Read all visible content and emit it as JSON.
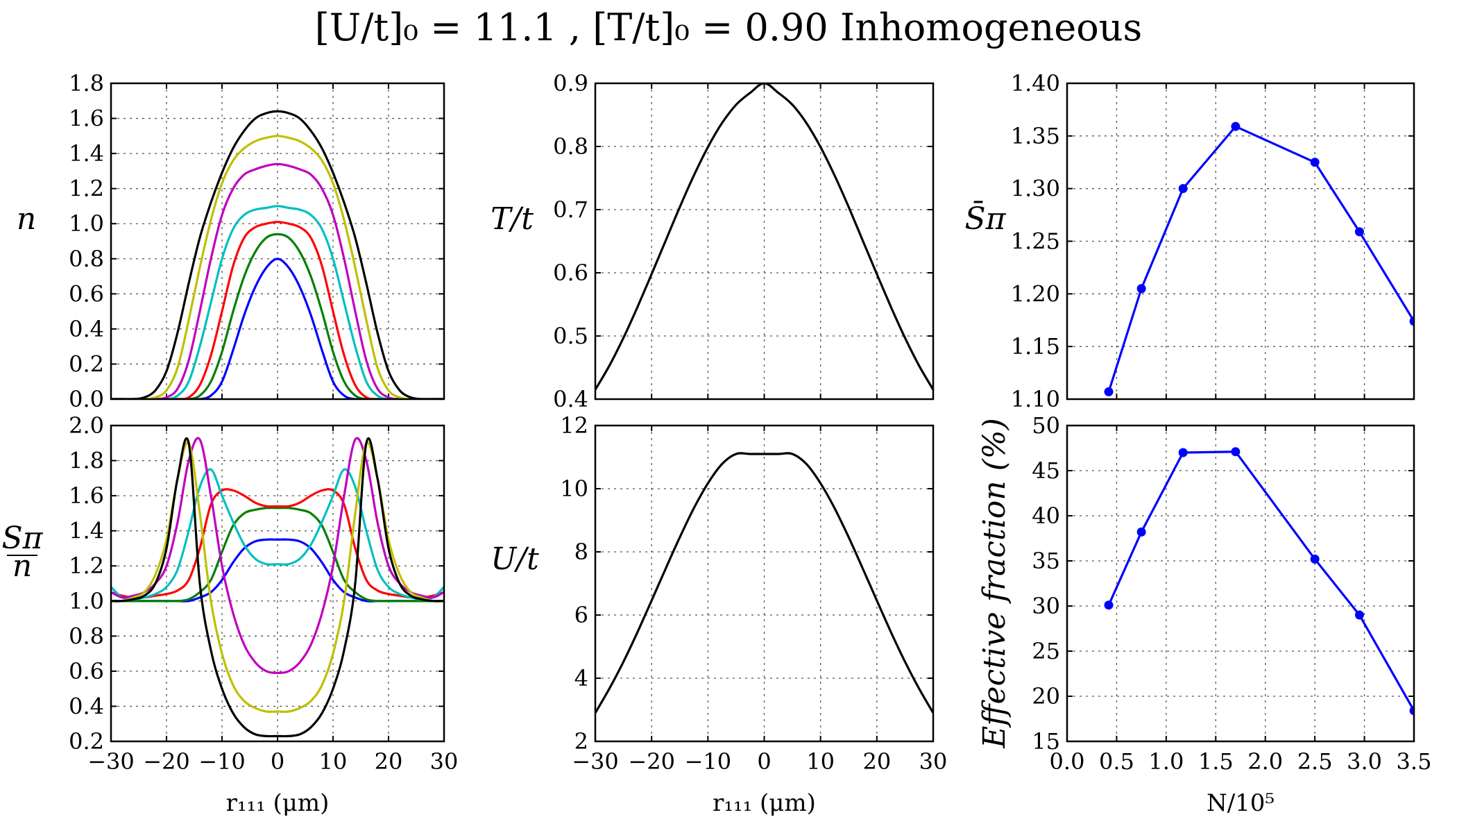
{
  "figure": {
    "title": "[U/t]₀ = 11.1 ,  [T/t]₀ = 0.90  Inhomogeneous"
  },
  "chart_data": [
    {
      "id": "density",
      "type": "line",
      "ylabel": "n",
      "xlabel": "",
      "xlim": [
        -30,
        30
      ],
      "ylim": [
        0.0,
        1.8
      ],
      "xticks": [
        -30,
        -20,
        -10,
        0,
        10,
        20,
        30
      ],
      "yticks": [
        0.0,
        0.2,
        0.4,
        0.6,
        0.8,
        1.0,
        1.2,
        1.4,
        1.6,
        1.8
      ],
      "show_xtick_labels": false,
      "grid": true,
      "x": [
        -30,
        -28,
        -26,
        -24,
        -22,
        -20,
        -18,
        -16,
        -14,
        -12,
        -10,
        -8,
        -6,
        -4,
        -2,
        0,
        2,
        4,
        6,
        8,
        10,
        12,
        14,
        16,
        18,
        20,
        22,
        24,
        26,
        28,
        30
      ],
      "series": [
        {
          "color": "#0000ff",
          "values": [
            0,
            0,
            0,
            0,
            0,
            0,
            0,
            0,
            0,
            0.02,
            0.1,
            0.28,
            0.48,
            0.64,
            0.75,
            0.8,
            0.75,
            0.64,
            0.48,
            0.28,
            0.1,
            0.02,
            0,
            0,
            0,
            0,
            0,
            0,
            0,
            0,
            0
          ]
        },
        {
          "color": "#007f00",
          "values": [
            0,
            0,
            0,
            0,
            0,
            0,
            0,
            0,
            0.02,
            0.1,
            0.27,
            0.5,
            0.7,
            0.84,
            0.92,
            0.94,
            0.92,
            0.84,
            0.7,
            0.5,
            0.27,
            0.1,
            0.02,
            0,
            0,
            0,
            0,
            0,
            0,
            0,
            0
          ]
        },
        {
          "color": "#ff0000",
          "values": [
            0,
            0,
            0,
            0,
            0,
            0,
            0,
            0.01,
            0.08,
            0.25,
            0.5,
            0.76,
            0.92,
            0.98,
            1.0,
            1.01,
            1.0,
            0.98,
            0.92,
            0.76,
            0.5,
            0.25,
            0.08,
            0.01,
            0,
            0,
            0,
            0,
            0,
            0,
            0
          ]
        },
        {
          "color": "#00bfbf",
          "values": [
            0,
            0,
            0,
            0,
            0,
            0,
            0.02,
            0.1,
            0.3,
            0.55,
            0.8,
            0.97,
            1.05,
            1.08,
            1.09,
            1.1,
            1.09,
            1.08,
            1.05,
            0.97,
            0.8,
            0.55,
            0.3,
            0.1,
            0.02,
            0,
            0,
            0,
            0,
            0,
            0
          ]
        },
        {
          "color": "#bf00bf",
          "values": [
            0,
            0,
            0,
            0,
            0,
            0.01,
            0.06,
            0.22,
            0.5,
            0.8,
            1.05,
            1.2,
            1.28,
            1.31,
            1.33,
            1.34,
            1.33,
            1.31,
            1.28,
            1.2,
            1.05,
            0.8,
            0.5,
            0.22,
            0.06,
            0.01,
            0,
            0,
            0,
            0,
            0
          ]
        },
        {
          "color": "#bfbf00",
          "values": [
            0,
            0,
            0,
            0,
            0.01,
            0.05,
            0.18,
            0.45,
            0.75,
            1.02,
            1.23,
            1.36,
            1.43,
            1.47,
            1.49,
            1.5,
            1.49,
            1.47,
            1.43,
            1.36,
            1.23,
            1.02,
            0.75,
            0.45,
            0.18,
            0.05,
            0.01,
            0,
            0,
            0,
            0
          ]
        },
        {
          "color": "#000000",
          "values": [
            0,
            0,
            0,
            0.01,
            0.05,
            0.16,
            0.38,
            0.66,
            0.92,
            1.12,
            1.29,
            1.43,
            1.53,
            1.6,
            1.63,
            1.64,
            1.63,
            1.6,
            1.53,
            1.43,
            1.29,
            1.12,
            0.92,
            0.66,
            0.38,
            0.16,
            0.05,
            0.01,
            0,
            0,
            0
          ]
        }
      ]
    },
    {
      "id": "structure_factor",
      "type": "line",
      "ylabel": "Sπ/n",
      "xlabel": "r₁₁₁ (μm)",
      "xlim": [
        -30,
        30
      ],
      "ylim": [
        0.2,
        2.0
      ],
      "xticks": [
        -30,
        -20,
        -10,
        0,
        10,
        20,
        30
      ],
      "yticks": [
        0.2,
        0.4,
        0.6,
        0.8,
        1.0,
        1.2,
        1.4,
        1.6,
        1.8,
        2.0
      ],
      "show_xtick_labels": true,
      "grid": true,
      "x": [
        -30,
        -28,
        -26,
        -24,
        -22,
        -20,
        -18,
        -16,
        -14,
        -12,
        -10,
        -8,
        -6,
        -4,
        -2,
        0,
        2,
        4,
        6,
        8,
        10,
        12,
        14,
        16,
        18,
        20,
        22,
        24,
        26,
        28,
        30
      ],
      "series": [
        {
          "color": "#0000ff",
          "values": [
            1.0,
            1.0,
            1.0,
            1.0,
            1.0,
            1.0,
            1.0,
            1.0,
            1.02,
            1.05,
            1.12,
            1.22,
            1.3,
            1.34,
            1.35,
            1.35,
            1.35,
            1.34,
            1.3,
            1.22,
            1.12,
            1.05,
            1.02,
            1.0,
            1.0,
            1.0,
            1.0,
            1.0,
            1.0,
            1.0,
            1.0
          ]
        },
        {
          "color": "#007f00",
          "values": [
            1.0,
            1.0,
            1.0,
            1.0,
            1.0,
            1.0,
            1.0,
            1.01,
            1.05,
            1.12,
            1.28,
            1.43,
            1.5,
            1.52,
            1.53,
            1.53,
            1.53,
            1.52,
            1.5,
            1.43,
            1.28,
            1.12,
            1.05,
            1.01,
            1.0,
            1.0,
            1.0,
            1.0,
            1.0,
            1.0,
            1.0
          ]
        },
        {
          "color": "#ff0000",
          "values": [
            1.05,
            1.03,
            1.02,
            1.02,
            1.03,
            1.04,
            1.06,
            1.12,
            1.3,
            1.55,
            1.63,
            1.63,
            1.6,
            1.56,
            1.54,
            1.54,
            1.54,
            1.56,
            1.6,
            1.63,
            1.63,
            1.55,
            1.3,
            1.12,
            1.06,
            1.04,
            1.03,
            1.02,
            1.02,
            1.03,
            1.05
          ]
        },
        {
          "color": "#00bfbf",
          "values": [
            1.08,
            1.02,
            1.01,
            1.02,
            1.04,
            1.08,
            1.18,
            1.4,
            1.65,
            1.75,
            1.6,
            1.45,
            1.32,
            1.24,
            1.21,
            1.21,
            1.21,
            1.24,
            1.32,
            1.45,
            1.6,
            1.75,
            1.65,
            1.4,
            1.18,
            1.08,
            1.04,
            1.02,
            1.01,
            1.02,
            1.08
          ]
        },
        {
          "color": "#bf00bf",
          "values": [
            1.05,
            1.02,
            1.03,
            1.05,
            1.1,
            1.2,
            1.45,
            1.8,
            1.92,
            1.6,
            1.2,
            0.93,
            0.75,
            0.65,
            0.6,
            0.59,
            0.6,
            0.65,
            0.75,
            0.93,
            1.2,
            1.6,
            1.92,
            1.8,
            1.45,
            1.2,
            1.1,
            1.05,
            1.03,
            1.02,
            1.05
          ]
        },
        {
          "color": "#bfbf00",
          "values": [
            1.0,
            1.0,
            1.02,
            1.05,
            1.15,
            1.35,
            1.7,
            1.9,
            1.5,
            1.0,
            0.7,
            0.52,
            0.43,
            0.39,
            0.37,
            0.37,
            0.37,
            0.39,
            0.43,
            0.52,
            0.7,
            1.0,
            1.5,
            1.9,
            1.7,
            1.35,
            1.15,
            1.05,
            1.02,
            1.0,
            1.0
          ]
        },
        {
          "color": "#000000",
          "values": [
            1.0,
            1.0,
            1.01,
            1.03,
            1.1,
            1.3,
            1.7,
            1.9,
            1.1,
            0.72,
            0.5,
            0.36,
            0.28,
            0.24,
            0.23,
            0.23,
            0.23,
            0.24,
            0.28,
            0.36,
            0.5,
            0.72,
            1.1,
            1.9,
            1.7,
            1.3,
            1.1,
            1.03,
            1.01,
            1.0,
            1.0
          ]
        }
      ]
    },
    {
      "id": "temperature",
      "type": "line",
      "ylabel": "T/t",
      "xlabel": "",
      "xlim": [
        -30,
        30
      ],
      "ylim": [
        0.4,
        0.9
      ],
      "xticks": [
        -30,
        -20,
        -10,
        0,
        10,
        20,
        30
      ],
      "yticks": [
        0.4,
        0.5,
        0.6,
        0.7,
        0.8,
        0.9
      ],
      "show_xtick_labels": false,
      "grid": true,
      "x": [
        -30,
        -27.5,
        -25,
        -22.5,
        -20,
        -17.5,
        -15,
        -12.5,
        -10,
        -7.5,
        -5,
        -2.5,
        0,
        2.5,
        5,
        7.5,
        10,
        12.5,
        15,
        17.5,
        20,
        22.5,
        25,
        27.5,
        30
      ],
      "series": [
        {
          "color": "#000000",
          "values": [
            0.415,
            0.453,
            0.497,
            0.546,
            0.598,
            0.651,
            0.704,
            0.754,
            0.799,
            0.837,
            0.866,
            0.885,
            0.9,
            0.885,
            0.866,
            0.837,
            0.799,
            0.754,
            0.704,
            0.651,
            0.598,
            0.546,
            0.497,
            0.453,
            0.415
          ]
        }
      ]
    },
    {
      "id": "interaction",
      "type": "line",
      "ylabel": "U/t",
      "xlabel": "r₁₁₁ (μm)",
      "xlim": [
        -30,
        30
      ],
      "ylim": [
        2,
        12
      ],
      "xticks": [
        -30,
        -20,
        -10,
        0,
        10,
        20,
        30
      ],
      "yticks": [
        2,
        4,
        6,
        8,
        10,
        12
      ],
      "show_xtick_labels": true,
      "grid": true,
      "x": [
        -30,
        -27.5,
        -25,
        -22.5,
        -20,
        -17.5,
        -15,
        -12.5,
        -10,
        -7.5,
        -5,
        -2.5,
        0,
        2.5,
        5,
        7.5,
        10,
        12.5,
        15,
        17.5,
        20,
        22.5,
        25,
        27.5,
        30
      ],
      "series": [
        {
          "color": "#000000",
          "values": [
            2.9,
            3.67,
            4.52,
            5.46,
            6.46,
            7.47,
            8.46,
            9.38,
            10.17,
            10.78,
            11.1,
            11.1,
            11.1,
            11.1,
            11.1,
            10.78,
            10.17,
            9.38,
            8.46,
            7.47,
            6.46,
            5.46,
            4.52,
            3.67,
            2.9
          ]
        }
      ]
    },
    {
      "id": "s_pi_bar",
      "type": "line",
      "ylabel": "S̄π",
      "xlabel": "",
      "xlim": [
        0.0,
        3.5
      ],
      "ylim": [
        1.1,
        1.4
      ],
      "xticks": [
        0.0,
        0.5,
        1.0,
        1.5,
        2.0,
        2.5,
        3.0,
        3.5
      ],
      "yticks": [
        "1.10",
        "1.15",
        "1.20",
        "1.25",
        "1.30",
        "1.35",
        "1.40"
      ],
      "show_xtick_labels": false,
      "grid": true,
      "markers": true,
      "x": [
        0.42,
        0.75,
        1.17,
        1.7,
        2.5,
        2.95,
        3.5
      ],
      "series": [
        {
          "color": "#0000ff",
          "values": [
            1.107,
            1.205,
            1.3,
            1.359,
            1.325,
            1.259,
            1.174
          ]
        }
      ]
    },
    {
      "id": "effective_fraction",
      "type": "line",
      "ylabel": "Effective fraction (%)",
      "xlabel": "N/10⁵",
      "xlim": [
        0.0,
        3.5
      ],
      "ylim": [
        15,
        50
      ],
      "xticks": [
        "0.0",
        "0.5",
        "1.0",
        "1.5",
        "2.0",
        "2.5",
        "3.0",
        "3.5"
      ],
      "yticks": [
        15,
        20,
        25,
        30,
        35,
        40,
        45,
        50
      ],
      "show_xtick_labels": true,
      "grid": true,
      "markers": true,
      "x": [
        0.42,
        0.75,
        1.17,
        1.7,
        2.5,
        2.95,
        3.5
      ],
      "series": [
        {
          "color": "#0000ff",
          "values": [
            30.1,
            38.2,
            47.0,
            47.1,
            35.2,
            29.0,
            18.4
          ]
        }
      ]
    }
  ]
}
